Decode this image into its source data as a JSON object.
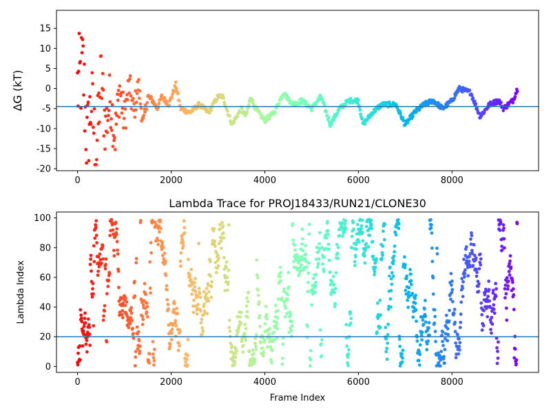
{
  "chart_data": [
    {
      "type": "scatter",
      "title": "",
      "xlabel": "",
      "ylabel": "ΔG (kT)",
      "xlim": [
        -450,
        9850
      ],
      "ylim": [
        -20.5,
        19.5
      ],
      "xticks": [
        0,
        2000,
        4000,
        6000,
        8000
      ],
      "yticks": [
        -20,
        -15,
        -10,
        -5,
        0,
        5,
        10,
        15
      ],
      "hline": -4.5,
      "hline_color": "#1f77b4",
      "colormap": "rainbow (red at frame 0 to violet at last frame)",
      "n_frames": 9400,
      "trace_keypoints": [
        [
          0,
          0
        ],
        [
          120,
          5
        ],
        [
          200,
          -14
        ],
        [
          300,
          -3
        ],
        [
          400,
          -17
        ],
        [
          500,
          3
        ],
        [
          600,
          -10
        ],
        [
          700,
          -2
        ],
        [
          800,
          -12
        ],
        [
          900,
          0
        ],
        [
          1000,
          -8
        ],
        [
          1100,
          1
        ],
        [
          1200,
          -6
        ],
        [
          1300,
          1
        ],
        [
          1400,
          -9
        ],
        [
          1500,
          -2
        ],
        [
          1600,
          -3
        ],
        [
          1700,
          -5
        ],
        [
          1800,
          -2
        ],
        [
          1950,
          -4
        ],
        [
          2100,
          1
        ],
        [
          2200,
          -5
        ],
        [
          2400,
          -6
        ],
        [
          2600,
          -4
        ],
        [
          2800,
          -6
        ],
        [
          3000,
          -2
        ],
        [
          3100,
          -2
        ],
        [
          3300,
          -9
        ],
        [
          3500,
          -5
        ],
        [
          3600,
          -7
        ],
        [
          3700,
          -2
        ],
        [
          3800,
          -5
        ],
        [
          4000,
          -8
        ],
        [
          4200,
          -6
        ],
        [
          4400,
          -1
        ],
        [
          4600,
          -4
        ],
        [
          4800,
          -3
        ],
        [
          5000,
          -5
        ],
        [
          5200,
          -2
        ],
        [
          5400,
          -9
        ],
        [
          5600,
          -5
        ],
        [
          5800,
          -3
        ],
        [
          6000,
          -3
        ],
        [
          6100,
          -9
        ],
        [
          6300,
          -6
        ],
        [
          6500,
          -4
        ],
        [
          6800,
          -4
        ],
        [
          7000,
          -9
        ],
        [
          7200,
          -6
        ],
        [
          7400,
          -4
        ],
        [
          7600,
          -3
        ],
        [
          7800,
          -5
        ],
        [
          8000,
          -3
        ],
        [
          8150,
          0
        ],
        [
          8400,
          -1
        ],
        [
          8600,
          -7
        ],
        [
          8800,
          -4
        ],
        [
          9000,
          -3
        ],
        [
          9100,
          -5
        ],
        [
          9300,
          -3
        ],
        [
          9400,
          0
        ]
      ]
    },
    {
      "type": "scatter",
      "title": "Lambda Trace for PROJ18433/RUN21/CLONE30",
      "xlabel": "Frame Index",
      "ylabel": "Lambda Index",
      "xlim": [
        -450,
        9850
      ],
      "ylim": [
        -4,
        104
      ],
      "xticks": [
        0,
        2000,
        4000,
        6000,
        8000
      ],
      "yticks": [
        0,
        20,
        40,
        60,
        80,
        100
      ],
      "hline": 20,
      "hline_color": "#1f77b4",
      "colormap": "rainbow (red at frame 0 to violet at last frame)",
      "lambda_range": [
        0,
        99
      ],
      "n_frames": 9400
    }
  ]
}
